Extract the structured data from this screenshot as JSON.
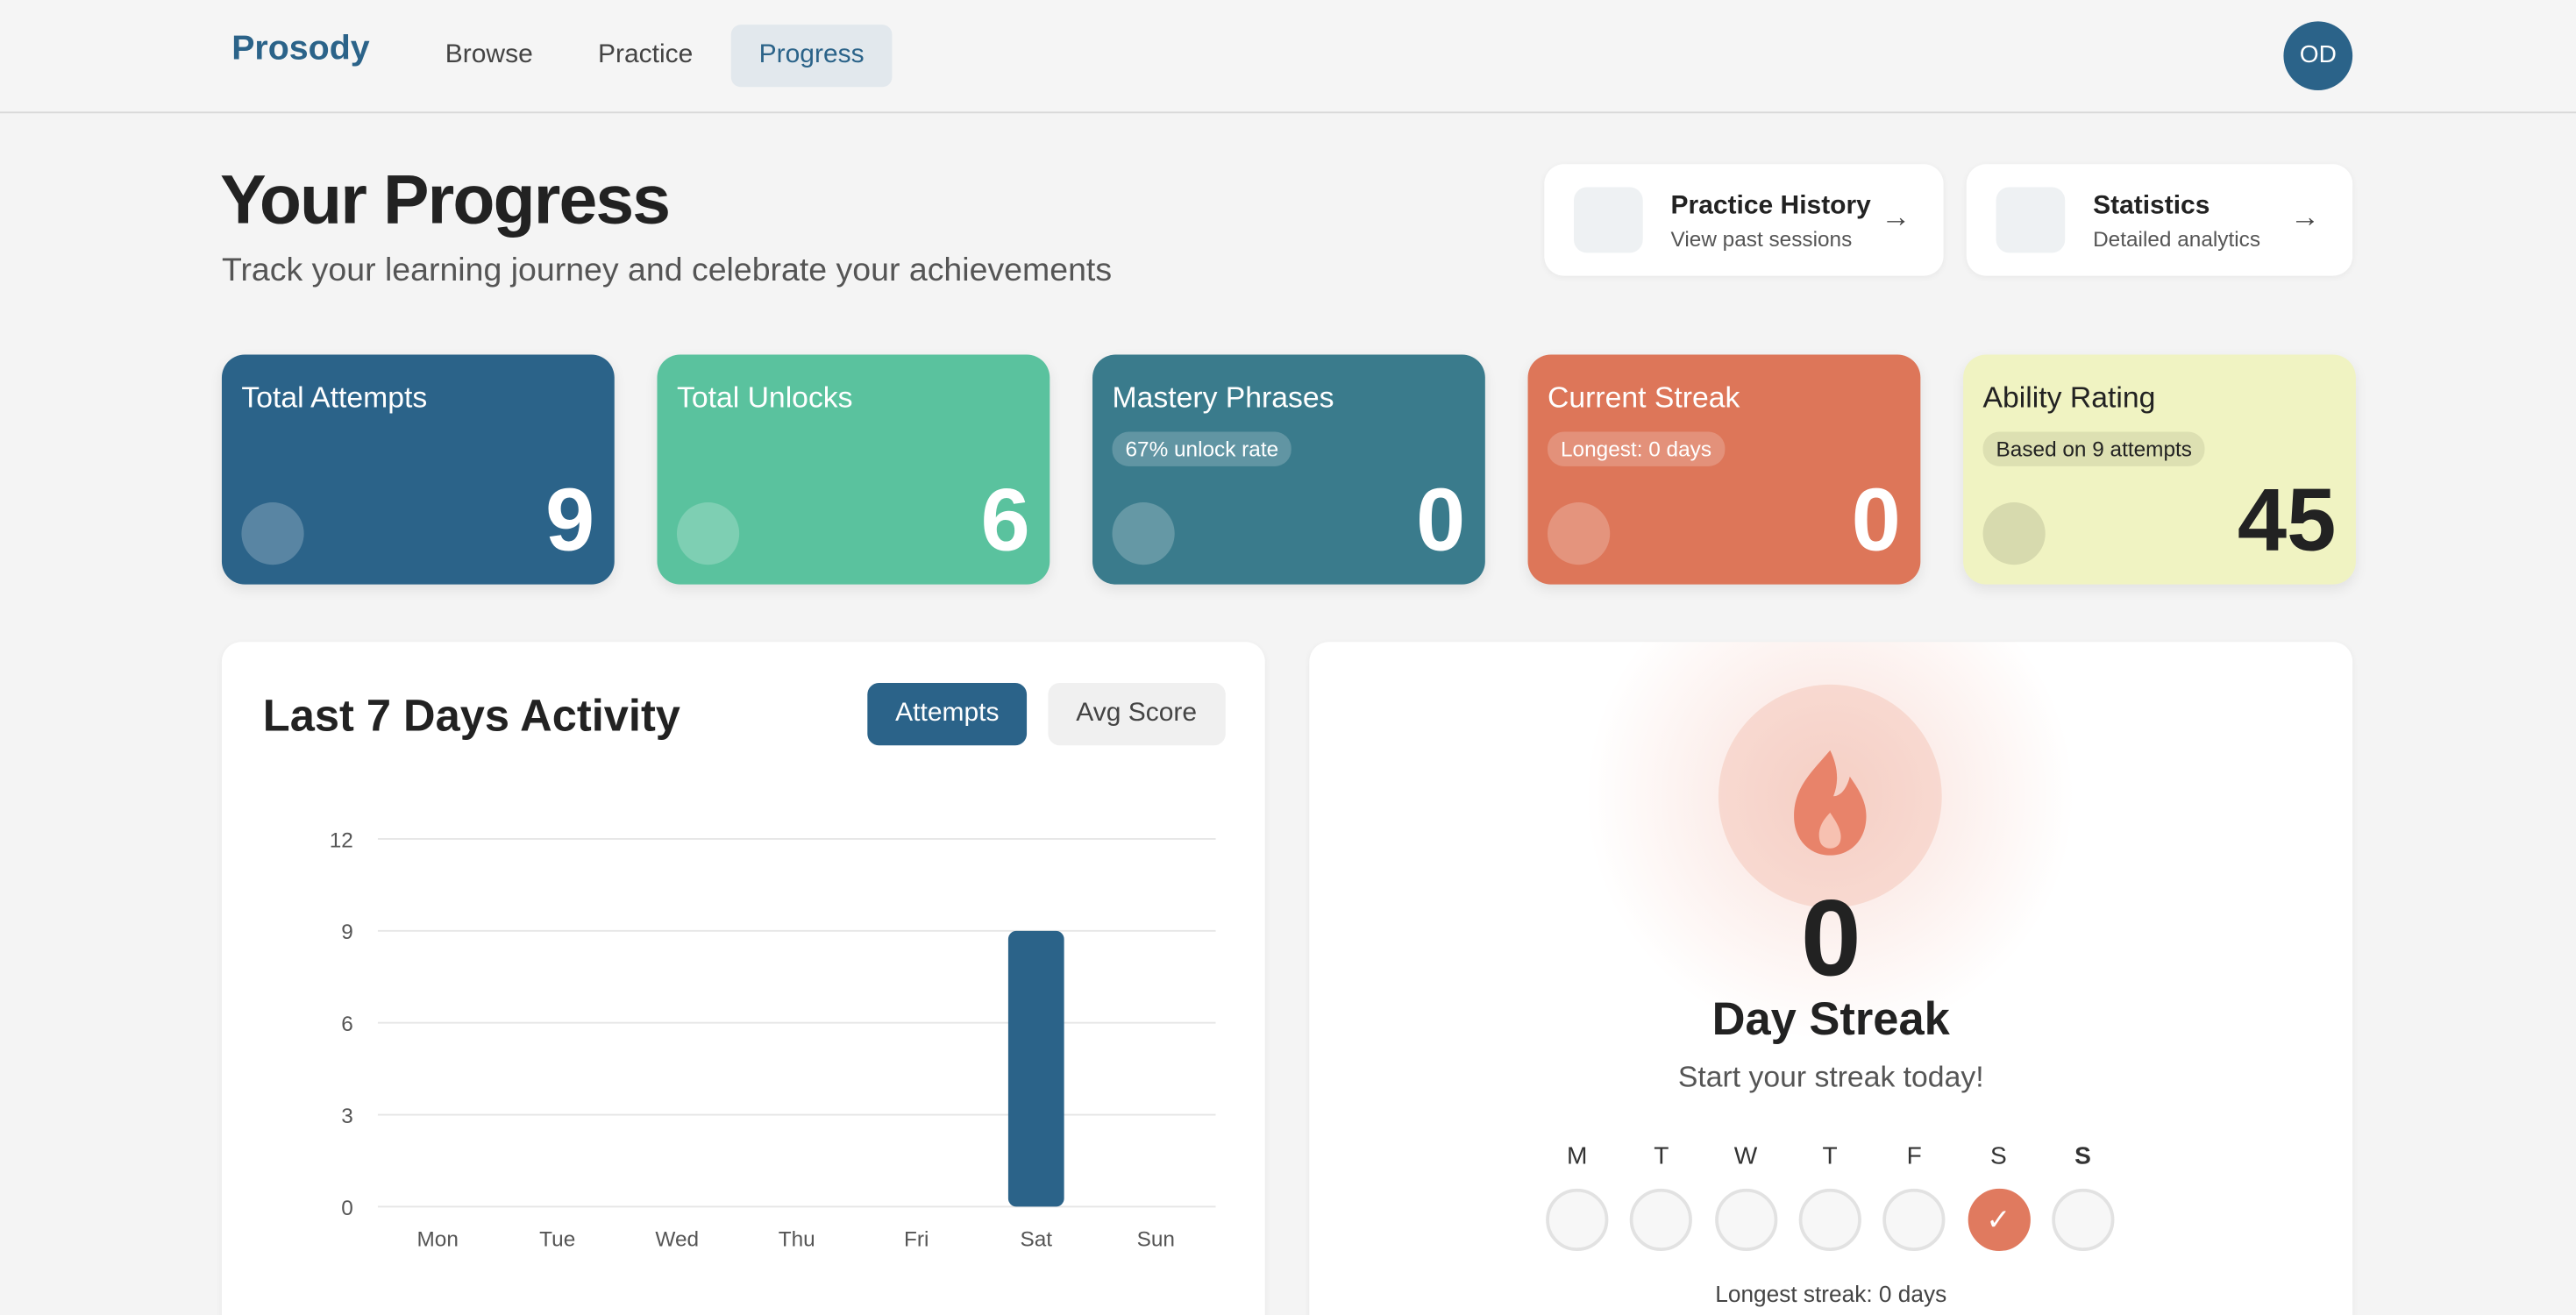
{
  "nav": {
    "logo": "Prosody",
    "items": [
      "Browse",
      "Practice",
      "Progress"
    ],
    "active": 2,
    "avatar": "OD"
  },
  "header": {
    "title": "Your Progress",
    "subtitle": "Track your learning journey and celebrate your achievements"
  },
  "links": [
    {
      "title": "Practice History",
      "subtitle": "View past sessions"
    },
    {
      "title": "Statistics",
      "subtitle": "Detailed analytics"
    }
  ],
  "stats": [
    {
      "title": "Total Attempts",
      "value": 9,
      "color": "#2b6389"
    },
    {
      "title": "Total Unlocks",
      "value": 6,
      "color": "#5ac29e"
    },
    {
      "title": "Mastery Phrases",
      "badge": "67% unlock rate",
      "value": 0,
      "color": "#3a7b8c"
    },
    {
      "title": "Current Streak",
      "badge": "Longest: 0 days",
      "value": 0,
      "color": "#dd7659"
    },
    {
      "title": "Ability Rating",
      "badge": "Based on 9 attempts",
      "value": 45,
      "color": "#f0f3c2"
    }
  ],
  "chart_tabs": {
    "items": [
      "Attempts",
      "Avg Score"
    ],
    "active": 0
  },
  "chart_data": {
    "type": "bar",
    "title": "Last 7 Days Activity",
    "categories": [
      "Mon",
      "Tue",
      "Wed",
      "Thu",
      "Fri",
      "Sat",
      "Sun"
    ],
    "values": [
      0,
      0,
      0,
      0,
      0,
      9,
      0
    ],
    "color": "#2b6389",
    "ylim": [
      0,
      12
    ],
    "yticks": [
      0,
      3,
      6,
      9,
      12
    ],
    "grid": true
  },
  "streak": {
    "value": 0,
    "label": "Day Streak",
    "message": "Start your streak today!",
    "days": [
      {
        "label": "M",
        "done": false
      },
      {
        "label": "T",
        "done": false
      },
      {
        "label": "W",
        "done": false
      },
      {
        "label": "T",
        "done": false
      },
      {
        "label": "F",
        "done": false
      },
      {
        "label": "S",
        "done": true
      },
      {
        "label": "S",
        "done": false
      }
    ],
    "longest": "Longest streak: 0 days"
  }
}
